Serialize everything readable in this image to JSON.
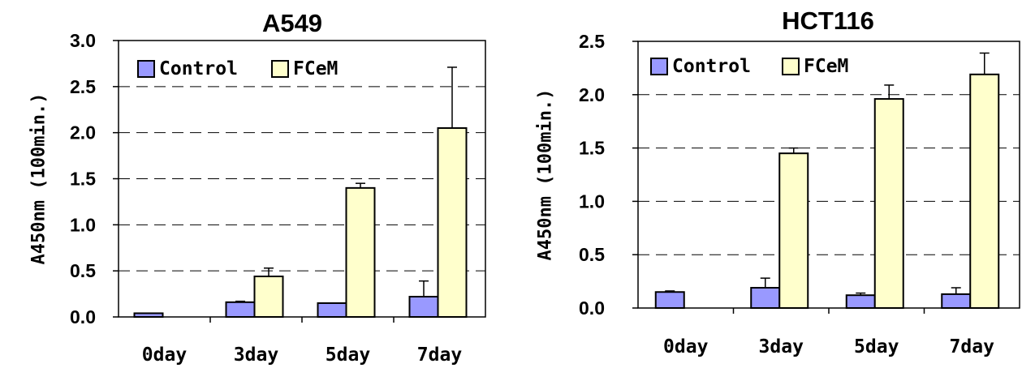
{
  "chart_data": [
    {
      "type": "bar",
      "title": "A549",
      "ylabel": "A450nm (100min.)",
      "xlabel": "",
      "categories": [
        "0day",
        "3day",
        "5day",
        "7day"
      ],
      "ylim": [
        0,
        3.0
      ],
      "yticks": [
        "0.0",
        "0.5",
        "1.0",
        "1.5",
        "2.0",
        "2.5",
        "3.0"
      ],
      "grid": "dashed horizontal",
      "legend": "top-left",
      "series": [
        {
          "name": "Control",
          "color": "#9999ff",
          "values": [
            0.04,
            0.16,
            0.15,
            0.22
          ],
          "errors": [
            0,
            0.01,
            0,
            0.17
          ]
        },
        {
          "name": "FCeM",
          "color": "#ffffcc",
          "values": [
            null,
            0.44,
            1.4,
            2.05
          ],
          "errors": [
            0,
            0.09,
            0.05,
            0.66
          ]
        }
      ]
    },
    {
      "type": "bar",
      "title": "HCT116",
      "ylabel": "A450nm (100min.)",
      "xlabel": "",
      "categories": [
        "0day",
        "3day",
        "5day",
        "7day"
      ],
      "ylim": [
        0,
        2.5
      ],
      "yticks": [
        "0.0",
        "0.5",
        "1.0",
        "1.5",
        "2.0",
        "2.5"
      ],
      "grid": "dashed horizontal",
      "legend": "top-left",
      "series": [
        {
          "name": "Control",
          "color": "#9999ff",
          "values": [
            0.15,
            0.19,
            0.12,
            0.13
          ],
          "errors": [
            0.01,
            0.09,
            0.02,
            0.06
          ]
        },
        {
          "name": "FCeM",
          "color": "#ffffcc",
          "values": [
            null,
            1.45,
            1.96,
            2.19
          ],
          "errors": [
            0,
            0.05,
            0.13,
            0.2
          ]
        }
      ]
    }
  ]
}
